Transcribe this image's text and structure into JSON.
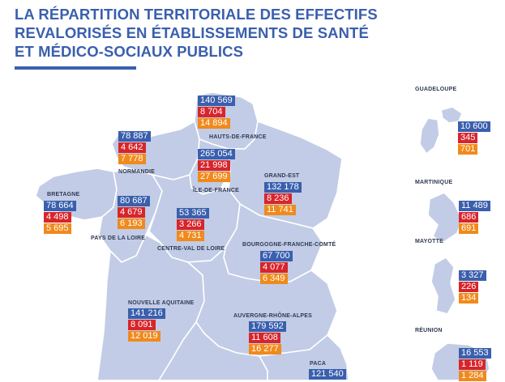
{
  "title": {
    "line1": "LA RÉPARTITION TERRITORIALE DES EFFECTIFS",
    "line2": "REVALORISÉS EN ÉTABLISSEMENTS DE SANTÉ",
    "line3": "ET MÉDICO-SOCIAUX PUBLICS"
  },
  "colors": {
    "title": "#3a5fad",
    "land": "#c2cce6",
    "border": "#ffffff",
    "blue": "#3a5fad",
    "red": "#d7252b",
    "orange": "#f08a1c"
  },
  "regions": {
    "hauts_de_france": {
      "name": "HAUTS-DE-FRANCE",
      "v1": "140 569",
      "v2": "8 704",
      "v3": "14 894"
    },
    "normandie": {
      "name": "NORMANDIE",
      "v1": "78 887",
      "v2": "4 642",
      "v3": "7 778"
    },
    "ile_de_france": {
      "name": "ÎLE-DE-FRANCE",
      "v1": "265 054",
      "v2": "21 998",
      "v3": "27 699"
    },
    "grand_est": {
      "name": "GRAND-EST",
      "v1": "132 178",
      "v2": "8 236",
      "v3": "11 741"
    },
    "bretagne": {
      "name": "BRETAGNE",
      "v1": "78 664",
      "v2": "4 498",
      "v3": "5 695"
    },
    "pays_de_la_loire": {
      "name": "PAYS DE LA LOIRE",
      "v1": "80 687",
      "v2": "4 679",
      "v3": "6 193"
    },
    "centre_val_de_loire": {
      "name": "CENTRE-VAL DE LOIRE",
      "v1": "53 365",
      "v2": "3 266",
      "v3": "4 731"
    },
    "bourgogne_franche_comte": {
      "name": "BOURGOGNE-FRANCHE-COMTÉ",
      "v1": "67 700",
      "v2": "4 077",
      "v3": "6 349"
    },
    "nouvelle_aquitaine": {
      "name": "NOUVELLE AQUITAINE",
      "v1": "141 216",
      "v2": "8 091",
      "v3": "12 019"
    },
    "auvergne_rhone_alpes": {
      "name": "AUVERGNE-RHÔNE-ALPES",
      "v1": "179 592",
      "v2": "11 608",
      "v3": "16 277"
    },
    "paca": {
      "name": "PACA",
      "v1": "121 540"
    }
  },
  "overseas": {
    "guadeloupe": {
      "name": "GUADELOUPE",
      "v1": "10 600",
      "v2": "345",
      "v3": "701"
    },
    "martinique": {
      "name": "MARTINIQUE",
      "v1": "11 489",
      "v2": "686",
      "v3": "691"
    },
    "mayotte": {
      "name": "MAYOTTE",
      "v1": "3 327",
      "v2": "226",
      "v3": "134"
    },
    "reunion": {
      "name": "RÉUNION",
      "v1": "16 553",
      "v2": "1 119",
      "v3": "1 284"
    }
  }
}
